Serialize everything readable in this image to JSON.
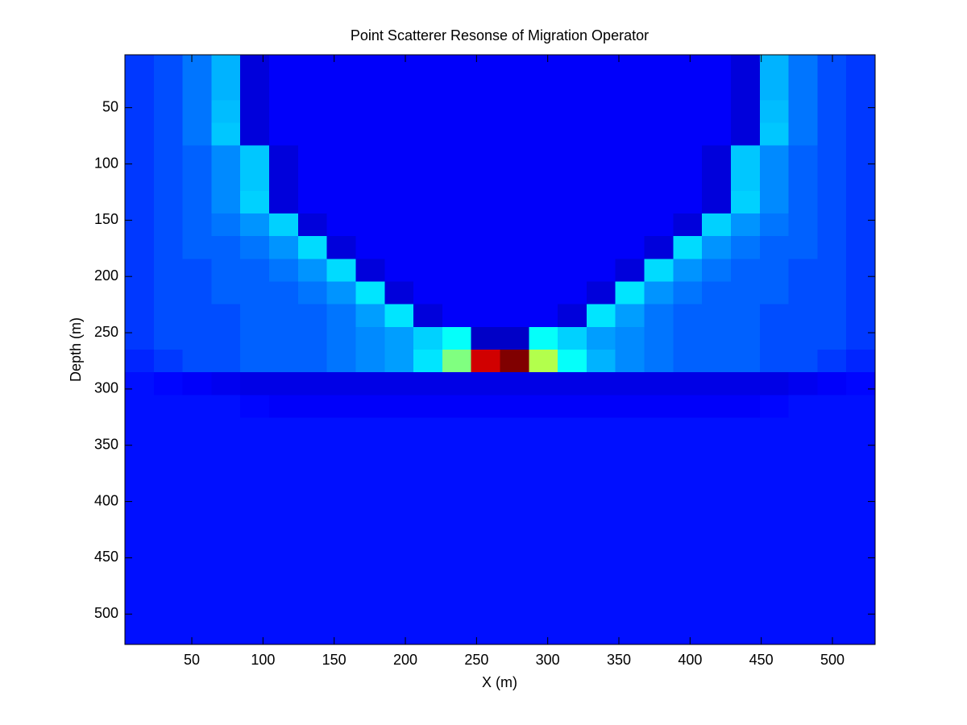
{
  "chart_data": {
    "type": "heatmap",
    "title": "Point Scatterer Resonse of Migration Operator",
    "xlabel": "X (m)",
    "ylabel": "Depth (m)",
    "xlim": [
      3,
      530
    ],
    "ylim": [
      3,
      527
    ],
    "y_reversed": true,
    "xticks": [
      50,
      100,
      150,
      200,
      250,
      300,
      350,
      400,
      450,
      500
    ],
    "yticks": [
      50,
      100,
      150,
      200,
      250,
      300,
      350,
      400,
      450,
      500
    ],
    "colormap": "jet",
    "clim": [
      0,
      100
    ],
    "z": [
      [
        18,
        20,
        24,
        30,
        9,
        12,
        12,
        12,
        12,
        12,
        12,
        12,
        12,
        12,
        12,
        12,
        12,
        12,
        12,
        12,
        12,
        9,
        30,
        24,
        20,
        18
      ],
      [
        18,
        20,
        24,
        30,
        9,
        12,
        12,
        12,
        12,
        12,
        12,
        12,
        12,
        12,
        12,
        12,
        12,
        12,
        12,
        12,
        12,
        9,
        30,
        24,
        20,
        18
      ],
      [
        18,
        20,
        24,
        31,
        9,
        12,
        12,
        12,
        12,
        12,
        12,
        12,
        12,
        12,
        12,
        12,
        12,
        12,
        12,
        12,
        12,
        9,
        31,
        24,
        20,
        18
      ],
      [
        18,
        20,
        24,
        32,
        9,
        12,
        12,
        12,
        12,
        12,
        12,
        12,
        12,
        12,
        12,
        12,
        12,
        12,
        12,
        12,
        12,
        9,
        32,
        24,
        20,
        18
      ],
      [
        18,
        20,
        22,
        26,
        32,
        9,
        12,
        12,
        12,
        12,
        12,
        12,
        12,
        12,
        12,
        12,
        12,
        12,
        12,
        12,
        9,
        32,
        26,
        22,
        20,
        18
      ],
      [
        18,
        20,
        22,
        26,
        32,
        9,
        12,
        12,
        12,
        12,
        12,
        12,
        12,
        12,
        12,
        12,
        12,
        12,
        12,
        12,
        9,
        32,
        26,
        22,
        20,
        18
      ],
      [
        18,
        20,
        22,
        26,
        33,
        9,
        12,
        12,
        12,
        12,
        12,
        12,
        12,
        12,
        12,
        12,
        12,
        12,
        12,
        12,
        9,
        33,
        26,
        22,
        20,
        18
      ],
      [
        18,
        20,
        22,
        24,
        27,
        33,
        9,
        12,
        12,
        12,
        12,
        12,
        12,
        12,
        12,
        12,
        12,
        12,
        12,
        9,
        33,
        27,
        24,
        22,
        20,
        18
      ],
      [
        18,
        20,
        22,
        22,
        24,
        27,
        34,
        9,
        12,
        12,
        12,
        12,
        12,
        12,
        12,
        12,
        12,
        12,
        9,
        34,
        27,
        24,
        22,
        22,
        20,
        18
      ],
      [
        18,
        20,
        20,
        22,
        22,
        24,
        27,
        34,
        9,
        12,
        12,
        12,
        12,
        12,
        12,
        12,
        12,
        9,
        34,
        27,
        24,
        22,
        22,
        20,
        20,
        18
      ],
      [
        18,
        20,
        20,
        22,
        22,
        22,
        24,
        27,
        35,
        9,
        12,
        12,
        12,
        12,
        12,
        12,
        9,
        35,
        27,
        24,
        22,
        22,
        22,
        20,
        20,
        18
      ],
      [
        18,
        20,
        20,
        20,
        22,
        22,
        22,
        24,
        28,
        35,
        9,
        12,
        12,
        12,
        12,
        9,
        35,
        28,
        24,
        22,
        22,
        22,
        20,
        20,
        20,
        18
      ],
      [
        18,
        20,
        20,
        20,
        22,
        22,
        22,
        24,
        26,
        28,
        33,
        38,
        7,
        7,
        38,
        33,
        28,
        26,
        24,
        22,
        22,
        22,
        20,
        20,
        20,
        18
      ],
      [
        16,
        18,
        20,
        20,
        22,
        22,
        22,
        24,
        26,
        28,
        35,
        50,
        92,
        100,
        55,
        38,
        30,
        26,
        24,
        22,
        22,
        22,
        20,
        20,
        18,
        16
      ],
      [
        14,
        13,
        12,
        11,
        10,
        10,
        10,
        10,
        10,
        10,
        10,
        10,
        10,
        10,
        10,
        10,
        10,
        10,
        10,
        10,
        10,
        10,
        10,
        11,
        12,
        13
      ],
      [
        14,
        14,
        14,
        14,
        13,
        12,
        12,
        12,
        12,
        12,
        12,
        12,
        12,
        12,
        12,
        12,
        12,
        12,
        12,
        12,
        12,
        12,
        13,
        14,
        14,
        14
      ],
      [
        14,
        14,
        14,
        14,
        14,
        14,
        14,
        14,
        14,
        14,
        14,
        14,
        14,
        14,
        14,
        14,
        14,
        14,
        14,
        14,
        14,
        14,
        14,
        14,
        14,
        14
      ],
      [
        14,
        14,
        14,
        14,
        14,
        14,
        14,
        14,
        14,
        14,
        14,
        14,
        14,
        14,
        14,
        14,
        14,
        14,
        14,
        14,
        14,
        14,
        14,
        14,
        14,
        14
      ],
      [
        14,
        14,
        14,
        14,
        14,
        14,
        14,
        14,
        14,
        14,
        14,
        14,
        14,
        14,
        14,
        14,
        14,
        14,
        14,
        14,
        14,
        14,
        14,
        14,
        14,
        14
      ],
      [
        14,
        14,
        14,
        14,
        14,
        14,
        14,
        14,
        14,
        14,
        14,
        14,
        14,
        14,
        14,
        14,
        14,
        14,
        14,
        14,
        14,
        14,
        14,
        14,
        14,
        14
      ],
      [
        14,
        14,
        14,
        14,
        14,
        14,
        14,
        14,
        14,
        14,
        14,
        14,
        14,
        14,
        14,
        14,
        14,
        14,
        14,
        14,
        14,
        14,
        14,
        14,
        14,
        14
      ],
      [
        14,
        14,
        14,
        14,
        14,
        14,
        14,
        14,
        14,
        14,
        14,
        14,
        14,
        14,
        14,
        14,
        14,
        14,
        14,
        14,
        14,
        14,
        14,
        14,
        14,
        14
      ],
      [
        14,
        14,
        14,
        14,
        14,
        14,
        14,
        14,
        14,
        14,
        14,
        14,
        14,
        14,
        14,
        14,
        14,
        14,
        14,
        14,
        14,
        14,
        14,
        14,
        14,
        14
      ],
      [
        14,
        14,
        14,
        14,
        14,
        14,
        14,
        14,
        14,
        14,
        14,
        14,
        14,
        14,
        14,
        14,
        14,
        14,
        14,
        14,
        14,
        14,
        14,
        14,
        14,
        14
      ],
      [
        14,
        14,
        14,
        14,
        14,
        14,
        14,
        14,
        14,
        14,
        14,
        14,
        14,
        14,
        14,
        14,
        14,
        14,
        14,
        14,
        14,
        14,
        14,
        14,
        14,
        14
      ],
      [
        14,
        14,
        14,
        14,
        14,
        14,
        14,
        14,
        14,
        14,
        14,
        14,
        14,
        14,
        14,
        14,
        14,
        14,
        14,
        14,
        14,
        14,
        14,
        14,
        14,
        14
      ]
    ]
  }
}
